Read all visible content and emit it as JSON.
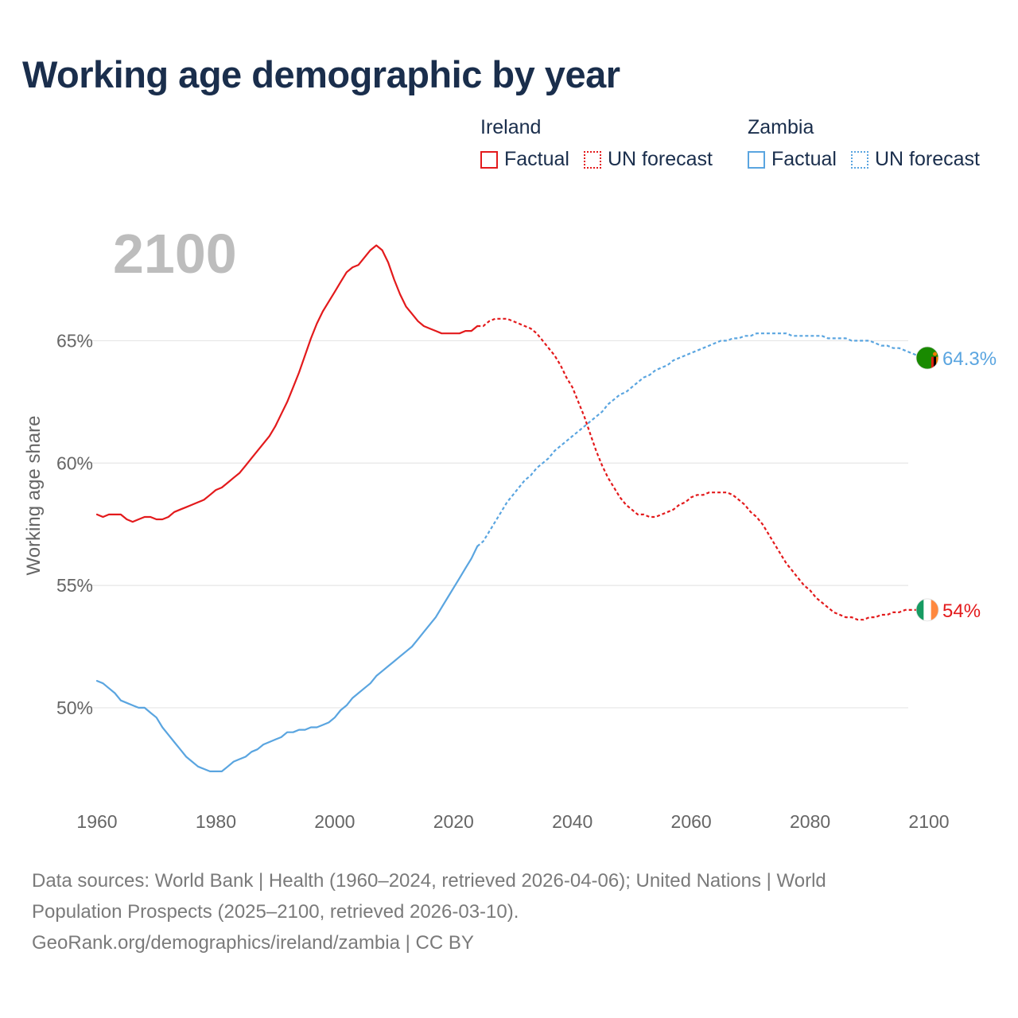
{
  "title": "Working age demographic by year",
  "legend": [
    {
      "name": "Ireland",
      "color": "#e31a1c",
      "items": [
        {
          "label": "Factual",
          "style": "solid"
        },
        {
          "label": "UN forecast",
          "style": "dotted"
        }
      ]
    },
    {
      "name": "Zambia",
      "color": "#5aa5e0",
      "items": [
        {
          "label": "Factual",
          "style": "solid"
        },
        {
          "label": "UN forecast",
          "style": "dotted"
        }
      ]
    }
  ],
  "footer": {
    "line1": "Data sources: World Bank | Health (1960–2024, retrieved 2026-04-06); United Nations | World",
    "line2": "Population Prospects (2025–2100, retrieved 2026-03-10).",
    "line3": "GeoRank.org/demographics/ireland/zambia | CC BY"
  },
  "chart_data": {
    "type": "line",
    "title": "Working age demographic by year",
    "year_label": "2100",
    "xlabel": "",
    "ylabel": "Working age share",
    "xlim": [
      1960,
      2100
    ],
    "ylim": [
      46,
      69.5
    ],
    "x_ticks": [
      1960,
      1980,
      2000,
      2020,
      2040,
      2060,
      2080,
      2100
    ],
    "y_ticks": [
      {
        "value": 50,
        "label": "50%"
      },
      {
        "value": 55,
        "label": "55%"
      },
      {
        "value": 60,
        "label": "60%"
      },
      {
        "value": 65,
        "label": "65%"
      }
    ],
    "grid": true,
    "forecast_start": 2024,
    "series": [
      {
        "name": "Ireland",
        "color": "#e31a1c",
        "end_label": "54%",
        "flag_colors": [
          "#169b62",
          "#ffffff",
          "#ff883e"
        ],
        "points": [
          [
            1960,
            57.9
          ],
          [
            1961,
            57.8
          ],
          [
            1962,
            57.9
          ],
          [
            1963,
            57.9
          ],
          [
            1964,
            57.9
          ],
          [
            1965,
            57.7
          ],
          [
            1966,
            57.6
          ],
          [
            1967,
            57.7
          ],
          [
            1968,
            57.8
          ],
          [
            1969,
            57.8
          ],
          [
            1970,
            57.7
          ],
          [
            1971,
            57.7
          ],
          [
            1972,
            57.8
          ],
          [
            1973,
            58.0
          ],
          [
            1974,
            58.1
          ],
          [
            1975,
            58.2
          ],
          [
            1976,
            58.3
          ],
          [
            1977,
            58.4
          ],
          [
            1978,
            58.5
          ],
          [
            1979,
            58.7
          ],
          [
            1980,
            58.9
          ],
          [
            1981,
            59.0
          ],
          [
            1982,
            59.2
          ],
          [
            1983,
            59.4
          ],
          [
            1984,
            59.6
          ],
          [
            1985,
            59.9
          ],
          [
            1986,
            60.2
          ],
          [
            1987,
            60.5
          ],
          [
            1988,
            60.8
          ],
          [
            1989,
            61.1
          ],
          [
            1990,
            61.5
          ],
          [
            1991,
            62.0
          ],
          [
            1992,
            62.5
          ],
          [
            1993,
            63.1
          ],
          [
            1994,
            63.7
          ],
          [
            1995,
            64.4
          ],
          [
            1996,
            65.1
          ],
          [
            1997,
            65.7
          ],
          [
            1998,
            66.2
          ],
          [
            1999,
            66.6
          ],
          [
            2000,
            67.0
          ],
          [
            2001,
            67.4
          ],
          [
            2002,
            67.8
          ],
          [
            2003,
            68.0
          ],
          [
            2004,
            68.1
          ],
          [
            2005,
            68.4
          ],
          [
            2006,
            68.7
          ],
          [
            2007,
            68.9
          ],
          [
            2008,
            68.7
          ],
          [
            2009,
            68.2
          ],
          [
            2010,
            67.5
          ],
          [
            2011,
            66.9
          ],
          [
            2012,
            66.4
          ],
          [
            2013,
            66.1
          ],
          [
            2014,
            65.8
          ],
          [
            2015,
            65.6
          ],
          [
            2016,
            65.5
          ],
          [
            2017,
            65.4
          ],
          [
            2018,
            65.3
          ],
          [
            2019,
            65.3
          ],
          [
            2020,
            65.3
          ],
          [
            2021,
            65.3
          ],
          [
            2022,
            65.4
          ],
          [
            2023,
            65.4
          ],
          [
            2024,
            65.6
          ],
          [
            2025,
            65.6
          ],
          [
            2026,
            65.8
          ],
          [
            2027,
            65.9
          ],
          [
            2028,
            65.9
          ],
          [
            2029,
            65.9
          ],
          [
            2030,
            65.8
          ],
          [
            2031,
            65.7
          ],
          [
            2032,
            65.6
          ],
          [
            2033,
            65.5
          ],
          [
            2034,
            65.3
          ],
          [
            2035,
            65.0
          ],
          [
            2036,
            64.7
          ],
          [
            2037,
            64.4
          ],
          [
            2038,
            64.0
          ],
          [
            2039,
            63.5
          ],
          [
            2040,
            63.1
          ],
          [
            2041,
            62.5
          ],
          [
            2042,
            61.9
          ],
          [
            2043,
            61.2
          ],
          [
            2044,
            60.5
          ],
          [
            2045,
            59.9
          ],
          [
            2046,
            59.4
          ],
          [
            2047,
            59.0
          ],
          [
            2048,
            58.6
          ],
          [
            2049,
            58.3
          ],
          [
            2050,
            58.1
          ],
          [
            2051,
            57.9
          ],
          [
            2052,
            57.9
          ],
          [
            2053,
            57.8
          ],
          [
            2054,
            57.8
          ],
          [
            2055,
            57.9
          ],
          [
            2056,
            58.0
          ],
          [
            2057,
            58.1
          ],
          [
            2058,
            58.3
          ],
          [
            2059,
            58.4
          ],
          [
            2060,
            58.6
          ],
          [
            2061,
            58.7
          ],
          [
            2062,
            58.7
          ],
          [
            2063,
            58.8
          ],
          [
            2064,
            58.8
          ],
          [
            2065,
            58.8
          ],
          [
            2066,
            58.8
          ],
          [
            2067,
            58.7
          ],
          [
            2068,
            58.5
          ],
          [
            2069,
            58.3
          ],
          [
            2070,
            58.0
          ],
          [
            2071,
            57.8
          ],
          [
            2072,
            57.5
          ],
          [
            2073,
            57.1
          ],
          [
            2074,
            56.7
          ],
          [
            2075,
            56.3
          ],
          [
            2076,
            55.9
          ],
          [
            2077,
            55.6
          ],
          [
            2078,
            55.3
          ],
          [
            2079,
            55.0
          ],
          [
            2080,
            54.8
          ],
          [
            2081,
            54.5
          ],
          [
            2082,
            54.3
          ],
          [
            2083,
            54.1
          ],
          [
            2084,
            53.9
          ],
          [
            2085,
            53.8
          ],
          [
            2086,
            53.7
          ],
          [
            2087,
            53.7
          ],
          [
            2088,
            53.6
          ],
          [
            2089,
            53.6
          ],
          [
            2090,
            53.7
          ],
          [
            2091,
            53.7
          ],
          [
            2092,
            53.8
          ],
          [
            2093,
            53.8
          ],
          [
            2094,
            53.9
          ],
          [
            2095,
            53.9
          ],
          [
            2096,
            54.0
          ],
          [
            2097,
            54.0
          ],
          [
            2098,
            54.0
          ],
          [
            2099,
            54.0
          ],
          [
            2100,
            54.0
          ]
        ]
      },
      {
        "name": "Zambia",
        "color": "#5aa5e0",
        "end_label": "64.3%",
        "flag_colors": [
          "#198a00",
          "#de2010",
          "#000000",
          "#ef7d00"
        ],
        "points": [
          [
            1960,
            51.1
          ],
          [
            1961,
            51.0
          ],
          [
            1962,
            50.8
          ],
          [
            1963,
            50.6
          ],
          [
            1964,
            50.3
          ],
          [
            1965,
            50.2
          ],
          [
            1966,
            50.1
          ],
          [
            1967,
            50.0
          ],
          [
            1968,
            50.0
          ],
          [
            1969,
            49.8
          ],
          [
            1970,
            49.6
          ],
          [
            1971,
            49.2
          ],
          [
            1972,
            48.9
          ],
          [
            1973,
            48.6
          ],
          [
            1974,
            48.3
          ],
          [
            1975,
            48.0
          ],
          [
            1976,
            47.8
          ],
          [
            1977,
            47.6
          ],
          [
            1978,
            47.5
          ],
          [
            1979,
            47.4
          ],
          [
            1980,
            47.4
          ],
          [
            1981,
            47.4
          ],
          [
            1982,
            47.6
          ],
          [
            1983,
            47.8
          ],
          [
            1984,
            47.9
          ],
          [
            1985,
            48.0
          ],
          [
            1986,
            48.2
          ],
          [
            1987,
            48.3
          ],
          [
            1988,
            48.5
          ],
          [
            1989,
            48.6
          ],
          [
            1990,
            48.7
          ],
          [
            1991,
            48.8
          ],
          [
            1992,
            49.0
          ],
          [
            1993,
            49.0
          ],
          [
            1994,
            49.1
          ],
          [
            1995,
            49.1
          ],
          [
            1996,
            49.2
          ],
          [
            1997,
            49.2
          ],
          [
            1998,
            49.3
          ],
          [
            1999,
            49.4
          ],
          [
            2000,
            49.6
          ],
          [
            2001,
            49.9
          ],
          [
            2002,
            50.1
          ],
          [
            2003,
            50.4
          ],
          [
            2004,
            50.6
          ],
          [
            2005,
            50.8
          ],
          [
            2006,
            51.0
          ],
          [
            2007,
            51.3
          ],
          [
            2008,
            51.5
          ],
          [
            2009,
            51.7
          ],
          [
            2010,
            51.9
          ],
          [
            2011,
            52.1
          ],
          [
            2012,
            52.3
          ],
          [
            2013,
            52.5
          ],
          [
            2014,
            52.8
          ],
          [
            2015,
            53.1
          ],
          [
            2016,
            53.4
          ],
          [
            2017,
            53.7
          ],
          [
            2018,
            54.1
          ],
          [
            2019,
            54.5
          ],
          [
            2020,
            54.9
          ],
          [
            2021,
            55.3
          ],
          [
            2022,
            55.7
          ],
          [
            2023,
            56.1
          ],
          [
            2024,
            56.6
          ],
          [
            2025,
            56.8
          ],
          [
            2026,
            57.2
          ],
          [
            2027,
            57.6
          ],
          [
            2028,
            58.0
          ],
          [
            2029,
            58.4
          ],
          [
            2030,
            58.7
          ],
          [
            2031,
            59.0
          ],
          [
            2032,
            59.3
          ],
          [
            2033,
            59.5
          ],
          [
            2034,
            59.8
          ],
          [
            2035,
            60.0
          ],
          [
            2036,
            60.2
          ],
          [
            2037,
            60.5
          ],
          [
            2038,
            60.7
          ],
          [
            2039,
            60.9
          ],
          [
            2040,
            61.1
          ],
          [
            2041,
            61.3
          ],
          [
            2042,
            61.5
          ],
          [
            2043,
            61.7
          ],
          [
            2044,
            61.9
          ],
          [
            2045,
            62.1
          ],
          [
            2046,
            62.4
          ],
          [
            2047,
            62.6
          ],
          [
            2048,
            62.8
          ],
          [
            2049,
            62.9
          ],
          [
            2050,
            63.1
          ],
          [
            2051,
            63.3
          ],
          [
            2052,
            63.5
          ],
          [
            2053,
            63.6
          ],
          [
            2054,
            63.8
          ],
          [
            2055,
            63.9
          ],
          [
            2056,
            64.0
          ],
          [
            2057,
            64.2
          ],
          [
            2058,
            64.3
          ],
          [
            2059,
            64.4
          ],
          [
            2060,
            64.5
          ],
          [
            2061,
            64.6
          ],
          [
            2062,
            64.7
          ],
          [
            2063,
            64.8
          ],
          [
            2064,
            64.9
          ],
          [
            2065,
            65.0
          ],
          [
            2066,
            65.0
          ],
          [
            2067,
            65.1
          ],
          [
            2068,
            65.1
          ],
          [
            2069,
            65.2
          ],
          [
            2070,
            65.2
          ],
          [
            2071,
            65.3
          ],
          [
            2072,
            65.3
          ],
          [
            2073,
            65.3
          ],
          [
            2074,
            65.3
          ],
          [
            2075,
            65.3
          ],
          [
            2076,
            65.3
          ],
          [
            2077,
            65.2
          ],
          [
            2078,
            65.2
          ],
          [
            2079,
            65.2
          ],
          [
            2080,
            65.2
          ],
          [
            2081,
            65.2
          ],
          [
            2082,
            65.2
          ],
          [
            2083,
            65.1
          ],
          [
            2084,
            65.1
          ],
          [
            2085,
            65.1
          ],
          [
            2086,
            65.1
          ],
          [
            2087,
            65.0
          ],
          [
            2088,
            65.0
          ],
          [
            2089,
            65.0
          ],
          [
            2090,
            65.0
          ],
          [
            2091,
            64.9
          ],
          [
            2092,
            64.8
          ],
          [
            2093,
            64.8
          ],
          [
            2094,
            64.7
          ],
          [
            2095,
            64.7
          ],
          [
            2096,
            64.6
          ],
          [
            2097,
            64.5
          ],
          [
            2098,
            64.4
          ],
          [
            2099,
            64.4
          ],
          [
            2100,
            64.3
          ]
        ]
      }
    ]
  }
}
